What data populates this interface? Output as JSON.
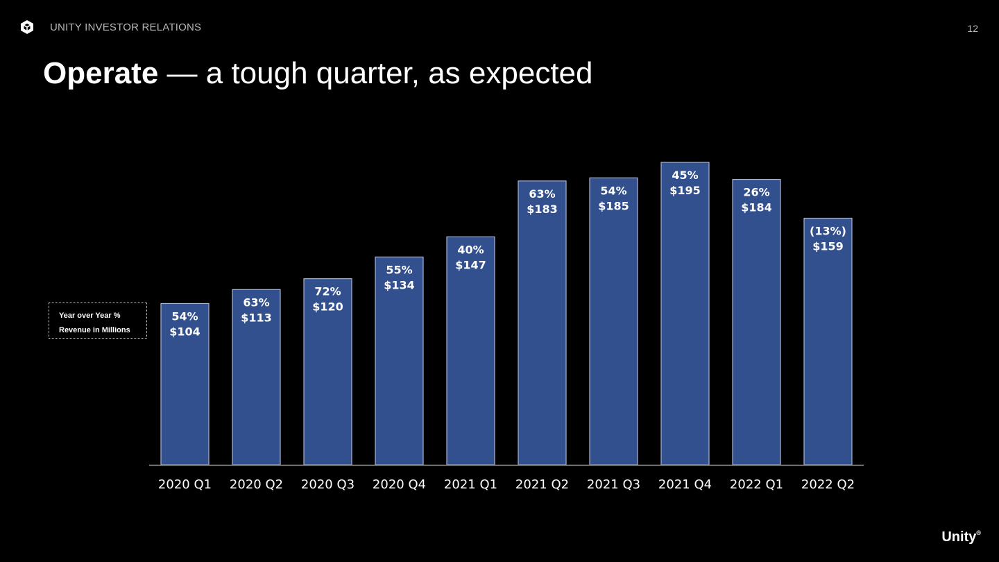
{
  "header": {
    "brand_label": "UNITY INVESTOR RELATIONS",
    "page_number": "12",
    "logo_icon": "unity-cube-icon"
  },
  "slide": {
    "title_strong": "Operate",
    "title_rest": " — a tough quarter, as expected"
  },
  "legend": {
    "line1": "Year over Year  %",
    "line2": "Revenue in Millions"
  },
  "footer": {
    "logo_text": "Unity",
    "logo_mark": "®"
  },
  "colors": {
    "background": "#000000",
    "bar_fill": "#324f8e",
    "bar_stroke": "#a9b6d3",
    "axis": "#9a9a9a",
    "text": "#ffffff"
  },
  "chart_data": {
    "type": "bar",
    "title": "",
    "xlabel": "",
    "ylabel": "",
    "categories": [
      "2020 Q1",
      "2020 Q2",
      "2020 Q3",
      "2020 Q4",
      "2021 Q1",
      "2021 Q2",
      "2021 Q3",
      "2021 Q4",
      "2022 Q1",
      "2022 Q2"
    ],
    "series": [
      {
        "values": [
          104,
          113,
          120,
          134,
          147,
          183,
          185,
          195,
          184,
          159
        ]
      }
    ],
    "value_labels": [
      "$104",
      "$113",
      "$120",
      "$134",
      "$147",
      "$183",
      "$185",
      "$195",
      "$184",
      "$159"
    ],
    "yoy_labels": [
      "54%",
      "63%",
      "72%",
      "55%",
      "40%",
      "63%",
      "54%",
      "45%",
      "26%",
      "(13%)"
    ],
    "ylim": [
      0,
      195
    ],
    "grid": false,
    "legend": "left"
  }
}
